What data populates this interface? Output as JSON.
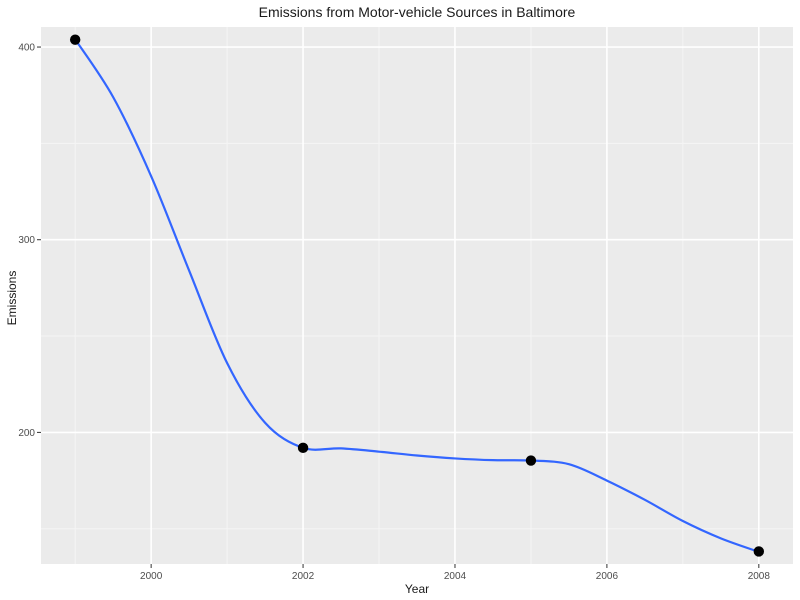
{
  "chart_data": {
    "type": "line",
    "title": "Emissions from Motor-vehicle Sources in Baltimore",
    "xlabel": "Year",
    "ylabel": "Emissions",
    "x": [
      1999,
      2002,
      2005,
      2008
    ],
    "series": [
      {
        "values": [
          403.8,
          192.0,
          185.4,
          138.2
        ]
      }
    ],
    "smooth_curve": [
      [
        1999,
        404
      ],
      [
        1999.5,
        374
      ],
      [
        2000,
        333
      ],
      [
        2000.5,
        284
      ],
      [
        2001,
        236
      ],
      [
        2001.5,
        205
      ],
      [
        2002,
        192
      ],
      [
        2002.5,
        191.7
      ],
      [
        2003,
        190
      ],
      [
        2003.5,
        188
      ],
      [
        2004,
        186.5
      ],
      [
        2004.5,
        185.6
      ],
      [
        2005,
        185.4
      ],
      [
        2005.5,
        183.5
      ],
      [
        2006,
        175
      ],
      [
        2006.5,
        165
      ],
      [
        2007,
        154
      ],
      [
        2007.5,
        145
      ],
      [
        2008,
        138
      ]
    ],
    "xlim": [
      1998.55,
      2008.45
    ],
    "ylim": [
      131.7,
      410.4
    ],
    "xticks": [
      2000,
      2002,
      2004,
      2006,
      2008
    ],
    "xtick_labels": [
      "2000",
      "2002",
      "2004",
      "2006",
      "2008"
    ],
    "yticks": [
      200,
      300,
      400
    ],
    "ytick_labels": [
      "200",
      "300",
      "400"
    ],
    "grid": true,
    "legend": "none",
    "colors": {
      "panel": "#ebebeb",
      "grid_major": "#ffffff",
      "grid_minor": "#f5f5f5",
      "line": "#3366ff",
      "point": "#000000",
      "axis_text": "#4d4d4d",
      "tick": "#333333"
    }
  }
}
